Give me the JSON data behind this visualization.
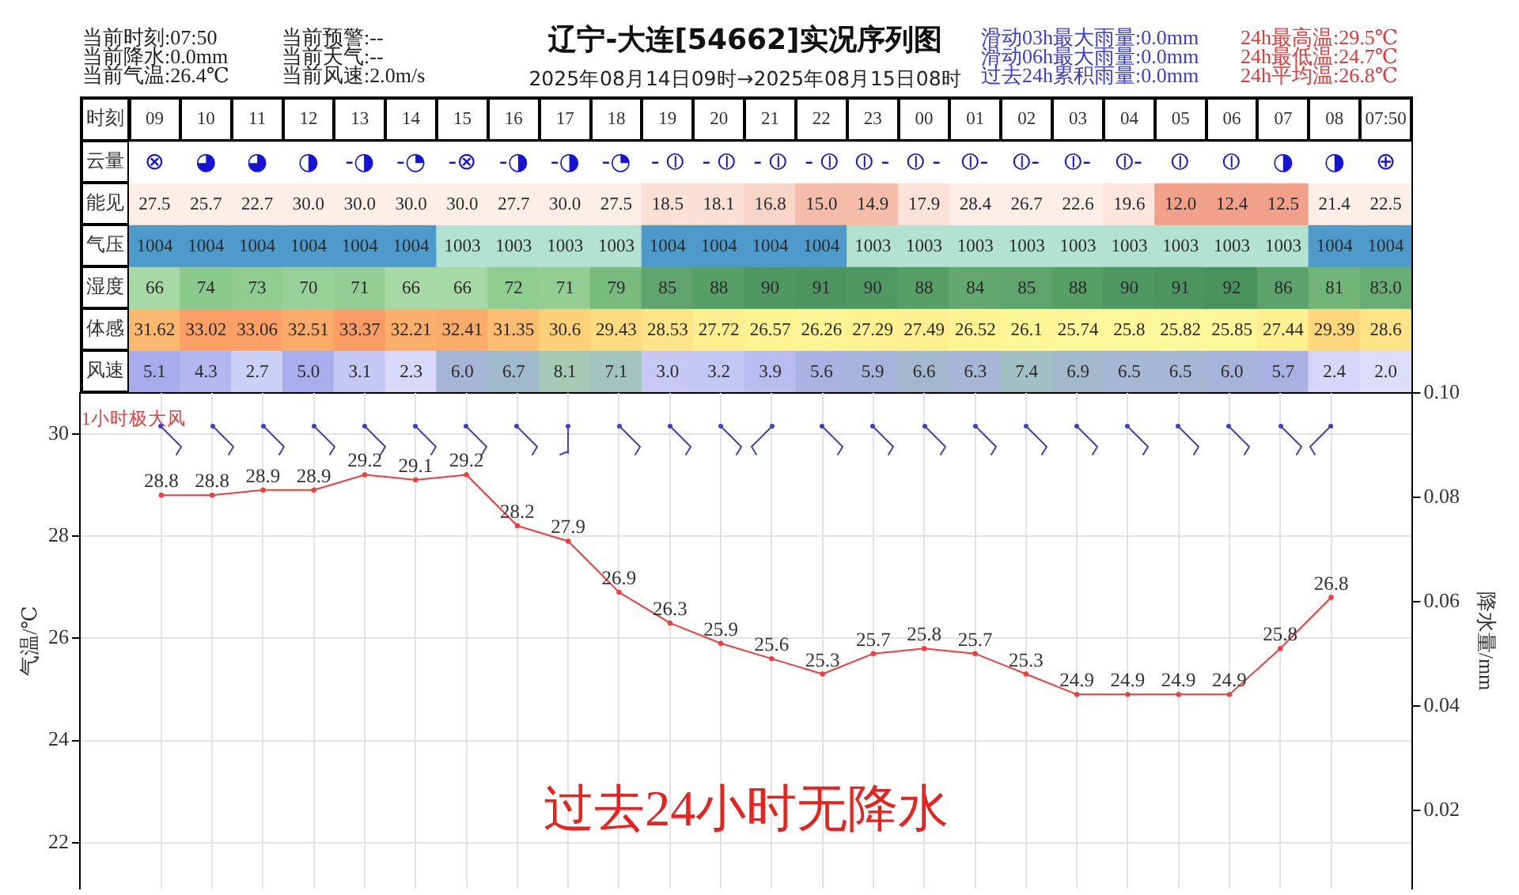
{
  "chart_data": [
    {
      "type": "other",
      "title": "辽宁-大连[54662]实况序列图",
      "subtitle": "2025年08月14日09时→2025年08月15日08时",
      "annotations": [
        "当前时刻:07:50",
        "当前降水:0.0mm",
        "当前气温:26.4℃",
        "当前预警:--",
        "当前天气:--",
        "当前风速:2.0m/s",
        "滑动03h最大雨量:0.0mm",
        "滑动06h最大雨量:0.0mm",
        "过去24h累积雨量:0.0mm",
        "24h最高温:29.5℃",
        "24h最低温:24.7℃",
        "24h平均温:26.8℃"
      ]
    },
    {
      "type": "heatmap",
      "xlabel": "时刻",
      "categories": [
        "09",
        "10",
        "11",
        "12",
        "13",
        "14",
        "15",
        "16",
        "17",
        "18",
        "19",
        "20",
        "21",
        "22",
        "23",
        "00",
        "01",
        "02",
        "03",
        "04",
        "05",
        "06",
        "07",
        "08",
        "07:50"
      ],
      "y_categories": [
        "云量",
        "能见",
        "气压",
        "湿度",
        "体感",
        "风速"
      ],
      "cells": [
        [
          null,
          null,
          null,
          null,
          null,
          null,
          null,
          null,
          null,
          null,
          null,
          null,
          null,
          null,
          null,
          null,
          null,
          null,
          null,
          null,
          null,
          null,
          null,
          null,
          null
        ],
        [
          27.5,
          25.7,
          22.7,
          30.0,
          30.0,
          30.0,
          30.0,
          27.7,
          30.0,
          27.5,
          18.5,
          18.1,
          16.8,
          15.0,
          14.9,
          17.9,
          28.4,
          26.7,
          22.6,
          19.6,
          12.0,
          12.4,
          12.5,
          21.4,
          22.5
        ],
        [
          1004,
          1004,
          1004,
          1004,
          1004,
          1004,
          1003,
          1003,
          1003,
          1003,
          1004,
          1004,
          1004,
          1004,
          1003,
          1003,
          1003,
          1003,
          1003,
          1003,
          1003,
          1003,
          1003,
          1004,
          1004
        ],
        [
          66,
          74,
          73,
          70,
          71,
          66,
          66,
          72,
          71,
          79,
          85,
          88,
          90,
          91,
          90,
          88,
          84,
          85,
          88,
          90,
          91,
          92,
          86,
          81,
          83.0
        ],
        [
          31.62,
          33.02,
          33.06,
          32.51,
          33.37,
          32.21,
          32.41,
          31.35,
          30.6,
          29.43,
          28.53,
          27.72,
          26.57,
          26.26,
          27.29,
          27.49,
          26.52,
          26.1,
          25.74,
          25.8,
          25.82,
          25.85,
          27.44,
          29.39,
          28.6
        ],
        [
          5.1,
          4.3,
          2.7,
          5.0,
          3.1,
          2.3,
          6.0,
          6.7,
          8.1,
          7.1,
          3.0,
          3.2,
          3.9,
          5.6,
          5.9,
          6.6,
          6.3,
          7.4,
          6.9,
          6.5,
          6.5,
          6.0,
          5.7,
          2.4,
          2.0
        ]
      ],
      "cell_labels": [
        [
          "⊗",
          "◕",
          "◕",
          "◑",
          "-◑",
          "-◔",
          "-⊗",
          "-◑",
          "-◑",
          "-◔",
          "- ⦶",
          "- ⦶",
          "- ⦶",
          "- ⦶",
          "⦶ -",
          "⦶ -",
          "⦶-",
          "⦶-",
          "⦶-",
          "⦶-",
          "⦶",
          "⦶",
          "◑",
          "◑",
          "⊕"
        ],
        [
          "27.5",
          "25.7",
          "22.7",
          "30.0",
          "30.0",
          "30.0",
          "30.0",
          "27.7",
          "30.0",
          "27.5",
          "18.5",
          "18.1",
          "16.8",
          "15.0",
          "14.9",
          "17.9",
          "28.4",
          "26.7",
          "22.6",
          "19.6",
          "12.0",
          "12.4",
          "12.5",
          "21.4",
          "22.5"
        ],
        [
          "1004",
          "1004",
          "1004",
          "1004",
          "1004",
          "1004",
          "1003",
          "1003",
          "1003",
          "1003",
          "1004",
          "1004",
          "1004",
          "1004",
          "1003",
          "1003",
          "1003",
          "1003",
          "1003",
          "1003",
          "1003",
          "1003",
          "1003",
          "1004",
          "1004"
        ],
        [
          "66",
          "74",
          "73",
          "70",
          "71",
          "66",
          "66",
          "72",
          "71",
          "79",
          "85",
          "88",
          "90",
          "91",
          "90",
          "88",
          "84",
          "85",
          "88",
          "90",
          "91",
          "92",
          "86",
          "81",
          "83.0"
        ],
        [
          "31.62",
          "33.02",
          "33.06",
          "32.51",
          "33.37",
          "32.21",
          "32.41",
          "31.35",
          "30.6",
          "29.43",
          "28.53",
          "27.72",
          "26.57",
          "26.26",
          "27.29",
          "27.49",
          "26.52",
          "26.1",
          "25.74",
          "25.8",
          "25.82",
          "25.85",
          "27.44",
          "29.39",
          "28.6"
        ],
        [
          "5.1",
          "4.3",
          "2.7",
          "5.0",
          "3.1",
          "2.3",
          "6.0",
          "6.7",
          "8.1",
          "7.1",
          "3.0",
          "3.2",
          "3.9",
          "5.6",
          "5.9",
          "6.6",
          "6.3",
          "7.4",
          "6.9",
          "6.5",
          "6.5",
          "6.0",
          "5.7",
          "2.4",
          "2.0"
        ]
      ],
      "colors": [
        [
          "#ffffff",
          "#ffffff",
          "#ffffff",
          "#ffffff",
          "#ffffff",
          "#ffffff",
          "#ffffff",
          "#ffffff",
          "#ffffff",
          "#ffffff",
          "#ffffff",
          "#ffffff",
          "#ffffff",
          "#ffffff",
          "#ffffff",
          "#ffffff",
          "#ffffff",
          "#ffffff",
          "#ffffff",
          "#ffffff",
          "#ffffff",
          "#ffffff",
          "#ffffff",
          "#ffffff",
          "#ffffff"
        ],
        [
          "#fdeee8",
          "#fdeee8",
          "#fdeee8",
          "#fdeee8",
          "#fdeee8",
          "#fdeee8",
          "#fdeee8",
          "#fdeee8",
          "#fdeee8",
          "#fdeee8",
          "#fbe0d5",
          "#fbe0d5",
          "#f9d5c7",
          "#f5bca9",
          "#f5bca9",
          "#fbe2d8",
          "#fdeee8",
          "#fdeee8",
          "#fdeee8",
          "#fce6dd",
          "#f1a18a",
          "#f1a18a",
          "#f1a18a",
          "#fdeee8",
          "#fdeee8"
        ],
        [
          "#4e9bcb",
          "#4e9bcb",
          "#4e9bcb",
          "#4e9bcb",
          "#4e9bcb",
          "#4e9bcb",
          "#b4e2d2",
          "#b4e2d2",
          "#b4e2d2",
          "#b4e2d2",
          "#4e9bcb",
          "#4e9bcb",
          "#4e9bcb",
          "#4e9bcb",
          "#b4e2d2",
          "#b4e2d2",
          "#b4e2d2",
          "#b4e2d2",
          "#b4e2d2",
          "#b4e2d2",
          "#b4e2d2",
          "#b4e2d2",
          "#b4e2d2",
          "#4e9bcb",
          "#4e9bcb"
        ],
        [
          "#a6d9a3",
          "#8bca8d",
          "#8ecc90",
          "#96d197",
          "#93cf95",
          "#a6d9a3",
          "#a6d9a3",
          "#90cd92",
          "#93cf95",
          "#78bb7f",
          "#5ea46c",
          "#56a066",
          "#4f9862",
          "#4c955f",
          "#4f9862",
          "#56a066",
          "#62a86f",
          "#5ea46c",
          "#56a066",
          "#4f9862",
          "#4c955f",
          "#49925c",
          "#5ba36a",
          "#70b478",
          "#68ae74"
        ],
        [
          "#fbb870",
          "#f9a067",
          "#f9a067",
          "#faab6a",
          "#f89c65",
          "#fab06c",
          "#faac6b",
          "#fbbd72",
          "#fdd07a",
          "#fedb81",
          "#fee58a",
          "#ffee8f",
          "#fff394",
          "#fff596",
          "#fff092",
          "#ffef91",
          "#fff394",
          "#fff697",
          "#fff79a",
          "#fff79a",
          "#fff79a",
          "#fff79a",
          "#ffef91",
          "#fdd67e",
          "#fee389"
        ],
        [
          "#a8acec",
          "#b3b6ef",
          "#cdd0f6",
          "#a9adec",
          "#c6c8f4",
          "#d8d9f8",
          "#a4b6d6",
          "#a0b9cb",
          "#a5c9b4",
          "#a3c3bd",
          "#c7c9f4",
          "#c4c6f3",
          "#b9bbf1",
          "#aab2e4",
          "#a6b4dc",
          "#a2b8cf",
          "#a5b6d6",
          "#a2bfc3",
          "#a2b9cc",
          "#a4b7d3",
          "#a4b7d3",
          "#a6b4da",
          "#a9b1e3",
          "#d6d7f8",
          "#dcddf9"
        ]
      ]
    },
    {
      "type": "line",
      "categories": [
        null,
        null,
        null,
        null,
        null,
        null,
        null,
        null,
        null,
        null,
        null,
        null,
        null,
        null,
        null,
        null,
        null,
        null,
        null,
        null,
        null,
        null,
        null,
        null
      ],
      "series": [
        {
          "color": "#f03c3c",
          "values": [
            28.8,
            28.8,
            28.9,
            28.9,
            29.2,
            29.1,
            29.2,
            28.2,
            27.9,
            26.9,
            26.3,
            25.9,
            25.6,
            25.3,
            25.7,
            25.8,
            25.7,
            25.3,
            24.9,
            24.9,
            24.9,
            24.9,
            25.8,
            26.8
          ]
        }
      ],
      "ylabel": "气温/℃",
      "y2label": "降水量/mm",
      "ylim": [
        21.1,
        30.8
      ],
      "yticks": [
        22,
        24,
        26,
        28,
        30
      ],
      "y2lim": [
        0.005,
        0.1
      ],
      "y2ticks": [
        0.02,
        0.04,
        0.06,
        0.08,
        {
          "value": 0.1,
          "label": "0.10"
        }
      ],
      "grid": true,
      "marker": "circle",
      "data_labels": true,
      "annotations": [
        "1小时极大风",
        "过去24小时无降水"
      ]
    }
  ]
}
